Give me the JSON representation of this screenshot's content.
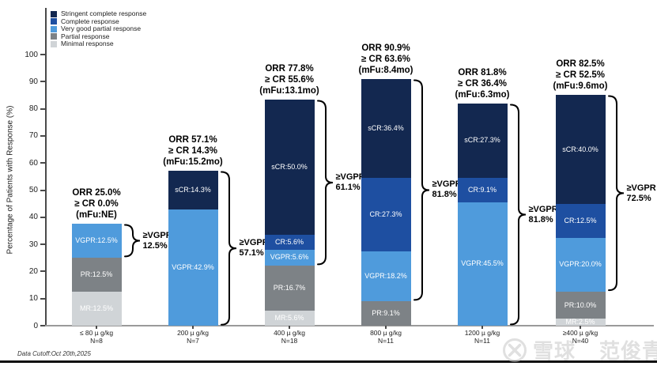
{
  "legend": {
    "items": [
      {
        "label": "Stringent complete response",
        "color": "#132850"
      },
      {
        "label": "Complete response",
        "color": "#1e4fa1"
      },
      {
        "label": "Very good partial response",
        "color": "#4f9bdc"
      },
      {
        "label": "Partial response",
        "color": "#7d8286"
      },
      {
        "label": "Minimal response",
        "color": "#d0d4d7"
      }
    ]
  },
  "y_axis": {
    "title": "Percentage of Patients with Response (%)",
    "ticks": [
      0,
      10,
      20,
      30,
      40,
      50,
      60,
      70,
      80,
      90,
      100
    ]
  },
  "footer": {
    "data_cutoff": "Data Cutoff:Oct 20th,2025"
  },
  "watermark": {
    "site": "雪球",
    "user": "范俊青"
  },
  "colors": {
    "sCR": "#132850",
    "CR": "#1e4fa1",
    "VGPR": "#4f9bdc",
    "PR": "#7d8286",
    "MR": "#d0d4d7",
    "bracket": "#000000"
  },
  "chart_data": {
    "type": "bar",
    "subtype": "stacked",
    "title": "",
    "xlabel": "",
    "ylabel": "Percentage of Patients with Response (%)",
    "ylim": [
      0,
      100
    ],
    "grid": false,
    "legend_position": "top-left",
    "categories": [
      "≤ 80 µ g/kg",
      "200 µ g/kg",
      "400 µ g/kg",
      "800 µ g/kg",
      "1200 µ g/kg",
      "≥400 µ g/kg"
    ],
    "category_n": [
      "N=8",
      "N=7",
      "N=18",
      "N=11",
      "N=11",
      "N=40"
    ],
    "series": [
      {
        "name": "Stringent complete response",
        "key": "sCR",
        "values": [
          0,
          14.3,
          50.0,
          36.4,
          27.3,
          40.0
        ]
      },
      {
        "name": "Complete response",
        "key": "CR",
        "values": [
          0,
          0,
          5.6,
          27.3,
          9.1,
          12.5
        ]
      },
      {
        "name": "Very good partial response",
        "key": "VGPR",
        "values": [
          12.5,
          42.9,
          5.6,
          18.2,
          45.5,
          20.0
        ]
      },
      {
        "name": "Partial response",
        "key": "PR",
        "values": [
          12.5,
          0,
          16.7,
          9.1,
          0,
          10.0
        ]
      },
      {
        "name": "Minimal response",
        "key": "MR",
        "values": [
          12.5,
          0,
          5.6,
          0,
          0,
          2.5
        ]
      }
    ],
    "bars": [
      {
        "dose": "≤ 80 µ g/kg",
        "n": "N=8",
        "annotation": [
          "ORR 25.0%",
          "≥ CR 0.0%",
          "(mFu:NE)"
        ],
        "segments": [
          {
            "key": "MR",
            "value": 12.5,
            "label": "MR:12.5%"
          },
          {
            "key": "PR",
            "value": 12.5,
            "label": "PR:12.5%"
          },
          {
            "key": "VGPR",
            "value": 12.5,
            "label": "VGPR:12.5%"
          }
        ],
        "bracket": {
          "from_pct": 25,
          "to_pct": 37.5,
          "label_lines": [
            "≥VGPR",
            "12.5%"
          ]
        }
      },
      {
        "dose": "200 µ g/kg",
        "n": "N=7",
        "annotation": [
          "ORR 57.1%",
          "≥ CR 14.3%",
          "(mFu:15.2mo)"
        ],
        "segments": [
          {
            "key": "VGPR",
            "value": 42.9,
            "label": "VGPR:42.9%"
          },
          {
            "key": "sCR",
            "value": 14.3,
            "label": "sCR:14.3%"
          }
        ],
        "bracket": {
          "from_pct": 0,
          "to_pct": 57.2,
          "label_lines": [
            "≥VGPR",
            "57.1%"
          ]
        }
      },
      {
        "dose": "400 µ g/kg",
        "n": "N=18",
        "annotation": [
          "ORR 77.8%",
          "≥ CR 55.6%",
          "(mFu:13.1mo)"
        ],
        "segments": [
          {
            "key": "MR",
            "value": 5.6,
            "label": "MR:5.6%"
          },
          {
            "key": "PR",
            "value": 16.7,
            "label": "PR:16.7%"
          },
          {
            "key": "VGPR",
            "value": 5.6,
            "label": "VGPR:5.6%"
          },
          {
            "key": "CR",
            "value": 5.6,
            "label": "CR:5.6%"
          },
          {
            "key": "sCR",
            "value": 50.0,
            "label": "sCR:50.0%"
          }
        ],
        "bracket": {
          "from_pct": 22.3,
          "to_pct": 83.5,
          "label_lines": [
            "≥VGPR",
            "61.1%"
          ]
        }
      },
      {
        "dose": "800 µ g/kg",
        "n": "N=11",
        "annotation": [
          "ORR 90.9%",
          "≥ CR 63.6%",
          "(mFu:8.4mo)"
        ],
        "segments": [
          {
            "key": "PR",
            "value": 9.1,
            "label": "PR:9.1%"
          },
          {
            "key": "VGPR",
            "value": 18.2,
            "label": "VGPR:18.2%"
          },
          {
            "key": "CR",
            "value": 27.3,
            "label": "CR:27.3%"
          },
          {
            "key": "sCR",
            "value": 36.4,
            "label": "sCR:36.4%"
          }
        ],
        "bracket": {
          "from_pct": 9.1,
          "to_pct": 91.0,
          "label_lines": [
            "≥VGPR",
            "81.8%"
          ]
        }
      },
      {
        "dose": "1200 µ g/kg",
        "n": "N=11",
        "annotation": [
          "ORR 81.8%",
          "≥ CR 36.4%",
          "(mFu:6.3mo)"
        ],
        "segments": [
          {
            "key": "VGPR",
            "value": 45.5,
            "label": "VGPR:45.5%"
          },
          {
            "key": "CR",
            "value": 9.1,
            "label": "CR:9.1%"
          },
          {
            "key": "sCR",
            "value": 27.3,
            "label": "sCR:27.3%"
          }
        ],
        "bracket": {
          "from_pct": 0,
          "to_pct": 81.9,
          "label_lines": [
            "≥VGPR",
            "81.8%"
          ]
        }
      },
      {
        "dose": "≥400 µ g/kg",
        "n": "N=40",
        "annotation": [
          "ORR 82.5%",
          "≥ CR 52.5%",
          "(mFu:9.6mo)"
        ],
        "segments": [
          {
            "key": "MR",
            "value": 2.5,
            "label": "MR:2.5%"
          },
          {
            "key": "PR",
            "value": 10.0,
            "label": "PR:10.0%"
          },
          {
            "key": "VGPR",
            "value": 20.0,
            "label": "VGPR:20.0%"
          },
          {
            "key": "CR",
            "value": 12.5,
            "label": "CR:12.5%"
          },
          {
            "key": "sCR",
            "value": 40.0,
            "label": "sCR:40.0%"
          }
        ],
        "bracket": {
          "from_pct": 12.5,
          "to_pct": 85.0,
          "label_lines": [
            "≥VGPR",
            "72.5%"
          ]
        }
      }
    ]
  }
}
